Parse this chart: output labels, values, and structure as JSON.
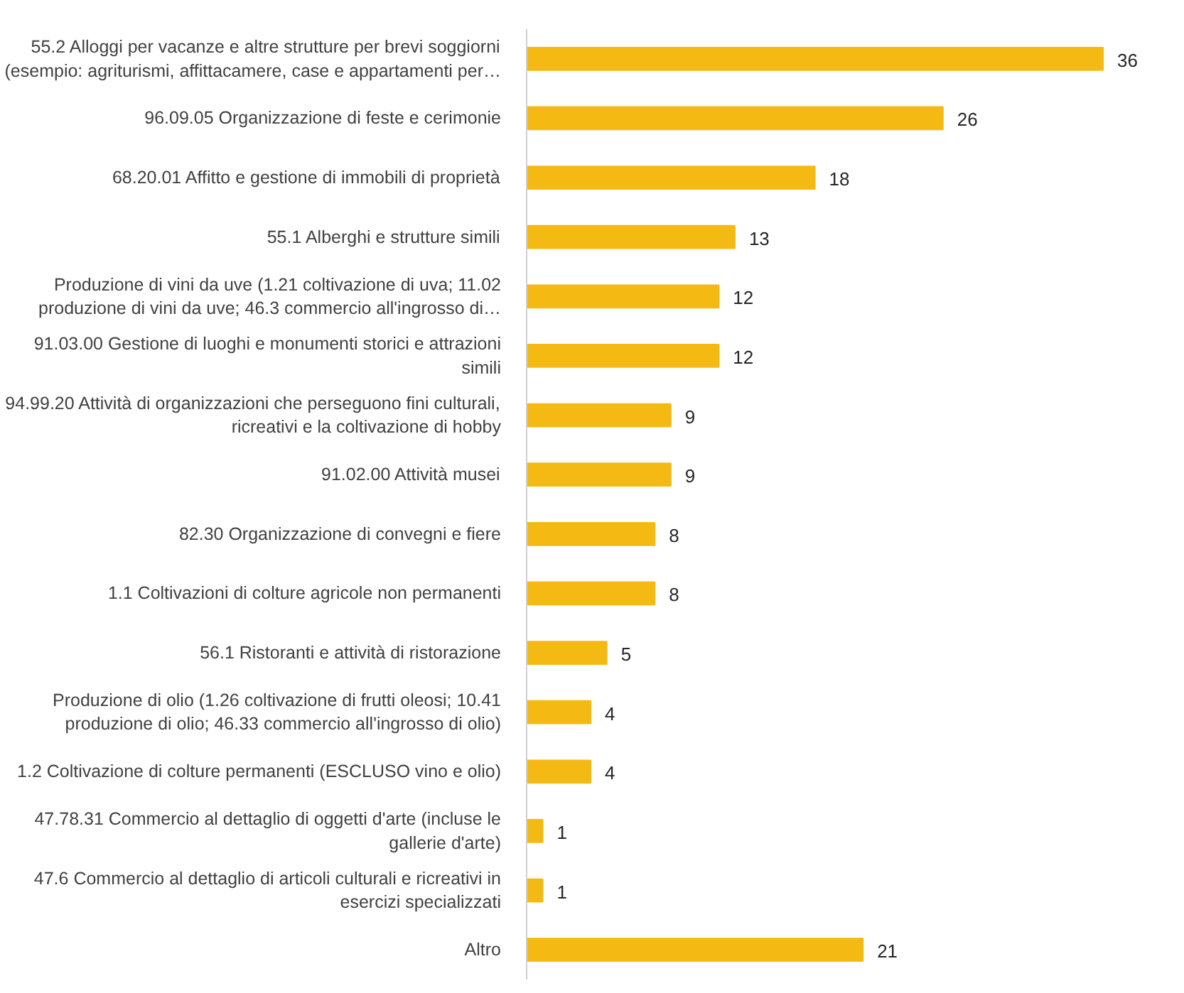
{
  "chart_data": {
    "type": "bar",
    "orientation": "horizontal",
    "data_labels": true,
    "categories": [
      "55.2 Alloggi per vacanze e altre strutture per brevi soggiorni (esempio: agriturismi, affittacamere, case e appartamenti per…",
      "96.09.05 Organizzazione di feste e cerimonie",
      "68.20.01 Affitto e gestione di immobili di proprietà",
      "55.1 Alberghi e strutture simili",
      "Produzione di vini da uve (1.21 coltivazione di uva; 11.02 produzione di vini da uve; 46.3 commercio all'ingrosso di…",
      "91.03.00 Gestione di luoghi e monumenti storici e attrazioni simili",
      "94.99.20 Attività di organizzazioni che perseguono fini culturali, ricreativi e la coltivazione di hobby",
      "91.02.00 Attività musei",
      "82.30 Organizzazione di convegni e fiere",
      "1.1 Coltivazioni di colture agricole non permanenti",
      "56.1 Ristoranti e attività di ristorazione",
      "Produzione di olio (1.26 coltivazione di frutti oleosi; 10.41 produzione di olio; 46.33 commercio all'ingrosso di olio)",
      "1.2 Coltivazione di colture permanenti (ESCLUSO vino e olio)",
      "47.78.31 Commercio al dettaglio di oggetti d'arte (incluse le gallerie d'arte)",
      "47.6 Commercio al dettaglio di articoli culturali e ricreativi in esercizi specializzati",
      "Altro"
    ],
    "values": [
      36,
      26,
      18,
      13,
      12,
      12,
      9,
      9,
      8,
      8,
      5,
      4,
      4,
      1,
      1,
      21
    ],
    "color": "#f5b914"
  }
}
